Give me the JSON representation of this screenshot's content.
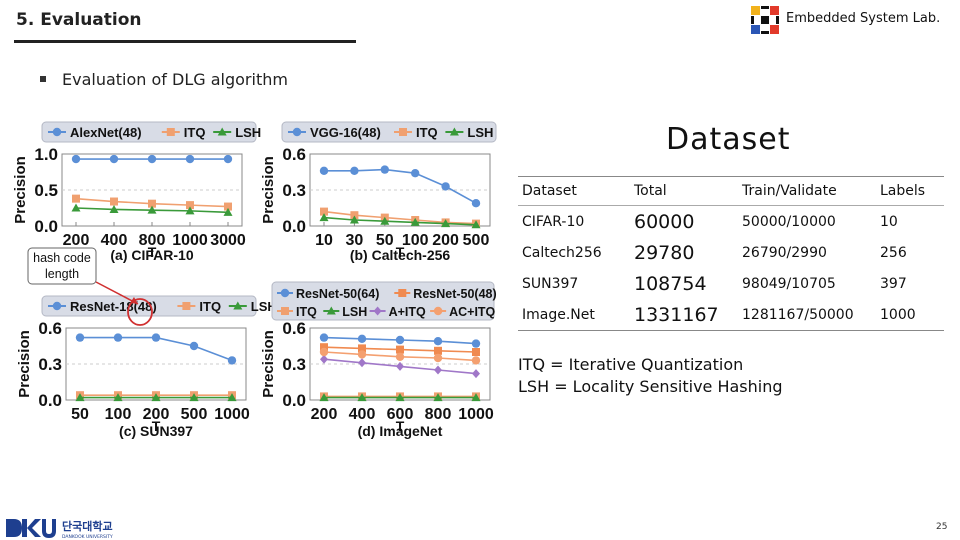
{
  "header": {
    "slide_title": "5. Evaluation",
    "lab_name": "Embedded System Lab."
  },
  "bullet": "Evaluation of DLG algorithm",
  "figure": {
    "panels": [
      {
        "caption": "(a) CIFAR-10",
        "legend": [
          "AlexNet(48)",
          "ITQ",
          "LSH"
        ],
        "ylabel": "Precision",
        "xlabel": "T",
        "yticks": [
          "1.0",
          "0.5",
          "0.0"
        ],
        "xticks": [
          "200",
          "400",
          "800",
          "1000",
          "3000"
        ]
      },
      {
        "caption": "(b) Caltech-256",
        "legend": [
          "VGG-16(48)",
          "ITQ",
          "LSH"
        ],
        "ylabel": "Precision",
        "xlabel": "T",
        "yticks": [
          "0.6",
          "0.3",
          "0.0"
        ],
        "xticks": [
          "10",
          "30",
          "50",
          "100",
          "200",
          "500"
        ]
      },
      {
        "caption": "(c) SUN397",
        "legend": [
          "ResNet-18(48)",
          "ITQ",
          "LSH"
        ],
        "ylabel": "Precision",
        "xlabel": "T",
        "yticks": [
          "0.6",
          "0.3",
          "0.0"
        ],
        "xticks": [
          "50",
          "100",
          "200",
          "500",
          "1000"
        ]
      },
      {
        "caption": "(d) ImageNet",
        "legend": [
          "ResNet-50(64)",
          "ResNet-50(48)",
          "ITQ",
          "LSH",
          "A+ITQ",
          "AC+ITQ"
        ],
        "ylabel": "Precision",
        "xlabel": "T",
        "yticks": [
          "0.6",
          "0.3",
          "0.0"
        ],
        "xticks": [
          "200",
          "400",
          "600",
          "800",
          "1000"
        ]
      }
    ],
    "annotation": [
      "hash code",
      "length"
    ]
  },
  "chart_data": [
    {
      "type": "line",
      "title": "(a) CIFAR-10",
      "xlabel": "T",
      "ylabel": "Precision",
      "ylim": [
        0,
        1.0
      ],
      "categories": [
        "200",
        "400",
        "800",
        "1000",
        "3000"
      ],
      "series": [
        {
          "name": "AlexNet(48)",
          "values": [
            0.93,
            0.93,
            0.93,
            0.93,
            0.93
          ]
        },
        {
          "name": "ITQ",
          "values": [
            0.38,
            0.34,
            0.31,
            0.29,
            0.27
          ]
        },
        {
          "name": "LSH",
          "values": [
            0.25,
            0.23,
            0.22,
            0.21,
            0.19
          ]
        }
      ]
    },
    {
      "type": "line",
      "title": "(b) Caltech-256",
      "xlabel": "T",
      "ylabel": "Precision",
      "ylim": [
        0,
        0.6
      ],
      "categories": [
        "10",
        "30",
        "50",
        "100",
        "200",
        "500"
      ],
      "series": [
        {
          "name": "VGG-16(48)",
          "values": [
            0.46,
            0.46,
            0.47,
            0.44,
            0.33,
            0.19
          ]
        },
        {
          "name": "ITQ",
          "values": [
            0.12,
            0.09,
            0.07,
            0.05,
            0.03,
            0.02
          ]
        },
        {
          "name": "LSH",
          "values": [
            0.07,
            0.05,
            0.04,
            0.03,
            0.02,
            0.01
          ]
        }
      ]
    },
    {
      "type": "line",
      "title": "(c) SUN397",
      "xlabel": "T",
      "ylabel": "Precision",
      "ylim": [
        0,
        0.6
      ],
      "categories": [
        "50",
        "100",
        "200",
        "500",
        "1000"
      ],
      "series": [
        {
          "name": "ResNet-18(48)",
          "values": [
            0.52,
            0.52,
            0.52,
            0.45,
            0.33
          ]
        },
        {
          "name": "ITQ",
          "values": [
            0.04,
            0.04,
            0.04,
            0.04,
            0.04
          ]
        },
        {
          "name": "LSH",
          "values": [
            0.02,
            0.02,
            0.02,
            0.02,
            0.02
          ]
        }
      ]
    },
    {
      "type": "line",
      "title": "(d) ImageNet",
      "xlabel": "T",
      "ylabel": "Precision",
      "ylim": [
        0,
        0.6
      ],
      "categories": [
        "200",
        "400",
        "600",
        "800",
        "1000"
      ],
      "series": [
        {
          "name": "ResNet-50(64)",
          "values": [
            0.52,
            0.51,
            0.5,
            0.49,
            0.47
          ]
        },
        {
          "name": "ResNet-50(48)",
          "values": [
            0.44,
            0.43,
            0.42,
            0.41,
            0.4
          ]
        },
        {
          "name": "ITQ",
          "values": [
            0.03,
            0.03,
            0.03,
            0.03,
            0.03
          ]
        },
        {
          "name": "LSH",
          "values": [
            0.02,
            0.02,
            0.02,
            0.02,
            0.02
          ]
        },
        {
          "name": "A+ITQ",
          "values": [
            0.34,
            0.31,
            0.28,
            0.25,
            0.22
          ]
        },
        {
          "name": "AC+ITQ",
          "values": [
            0.4,
            0.38,
            0.36,
            0.35,
            0.33
          ]
        }
      ]
    }
  ],
  "dataset_heading": "Dataset",
  "dataset_table": {
    "headers": [
      "Dataset",
      "Total",
      "Train/Validate",
      "Labels"
    ],
    "rows": [
      [
        "CIFAR-10",
        "60000",
        "50000/10000",
        "10"
      ],
      [
        "Caltech256",
        "29780",
        "26790/2990",
        "256"
      ],
      [
        "SUN397",
        "108754",
        "98049/10705",
        "397"
      ],
      [
        "Image.Net",
        "1331167",
        "1281167/50000",
        "1000"
      ]
    ]
  },
  "definitions": [
    "ITQ = Iterative Quantization",
    "LSH = Locality Sensitive Hashing"
  ],
  "footer": {
    "university_name": "단국대학교",
    "university_sub": "DANKOOK UNIVERSITY",
    "page_number": "25"
  },
  "colors": {
    "main_series": "#5b8fd6",
    "itq": "#f0a070",
    "lsh": "#3a9a3a",
    "a_itq": "#a077c8",
    "ac_itq": "#f4a070",
    "legend_bg": "#d8dce6",
    "annotation": "#d03030"
  }
}
